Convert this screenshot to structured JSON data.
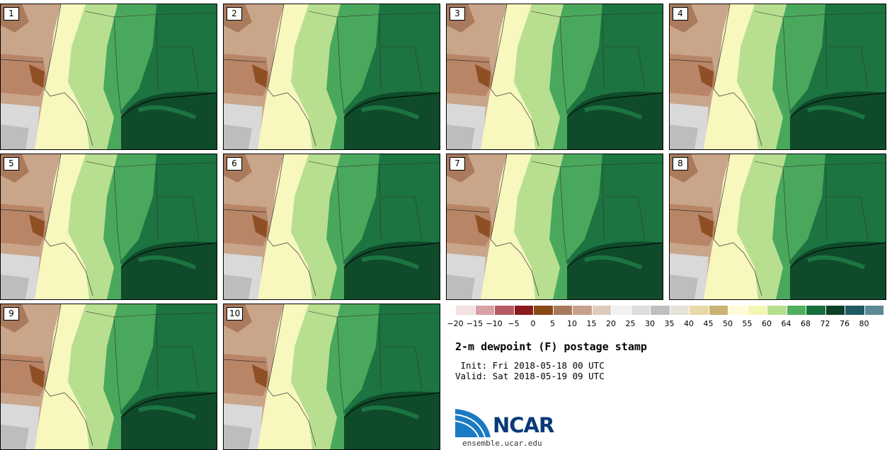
{
  "panels": [
    "1",
    "2",
    "3",
    "4",
    "5",
    "6",
    "7",
    "8",
    "9",
    "10"
  ],
  "colorbar": {
    "colors": [
      "#f4e1e1",
      "#d8a1a5",
      "#b55c62",
      "#8b1a1a",
      "#8a4a14",
      "#a9795c",
      "#c6a08a",
      "#decbbd",
      "#f1f1f1",
      "#dddddd",
      "#bfbfbf",
      "#e4e2d6",
      "#e7d9a8",
      "#c9b274",
      "#fffbd8",
      "#f4f6b4",
      "#b6e08e",
      "#4fae5f",
      "#176f3b",
      "#0c4026",
      "#1f5a62",
      "#5b8a95"
    ],
    "ticks": [
      "−20",
      "−15",
      "−10",
      "−5",
      "0",
      "5",
      "10",
      "15",
      "20",
      "25",
      "30",
      "35",
      "40",
      "45",
      "50",
      "55",
      "60",
      "64",
      "68",
      "72",
      "76",
      "80"
    ]
  },
  "title": "2-m dewpoint (F) postage stamp",
  "init": " Init: Fri 2018-05-18 00 UTC",
  "valid": "Valid: Sat 2018-05-19 09 UTC",
  "logo_text": "NCAR",
  "site": "ensemble.ucar.edu"
}
